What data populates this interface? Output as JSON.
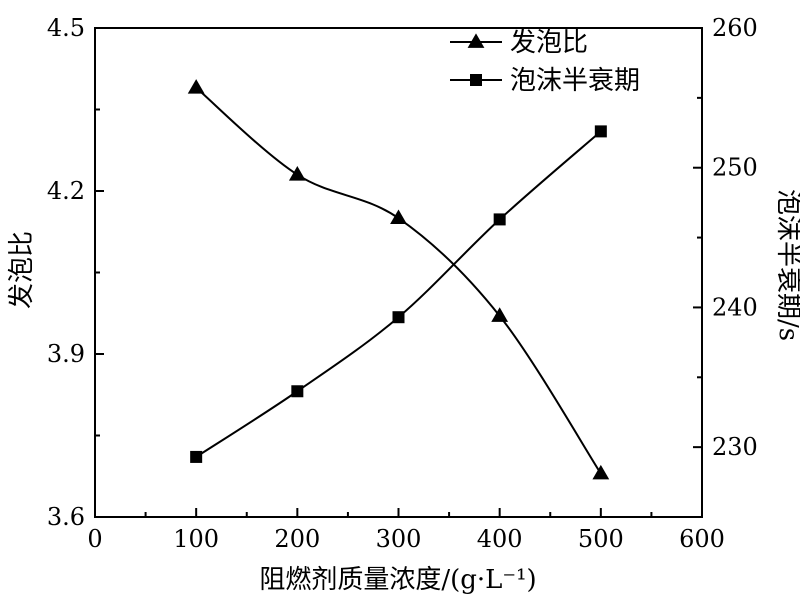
{
  "chart_data": {
    "type": "line",
    "title": "",
    "xlabel": "阻燃剂质量浓度/(g·L⁻¹)",
    "ylabel_left": "发泡比",
    "ylabel_right": "泡沫半衰期/s",
    "xlim": [
      0,
      600
    ],
    "ylim_left": [
      3.6,
      4.5
    ],
    "ylim_right": [
      225,
      260
    ],
    "x_ticks": [
      "0",
      "100",
      "200",
      "300",
      "400",
      "500",
      "600"
    ],
    "y_left_ticks": [
      "3.6",
      "3.9",
      "4.2",
      "4.5"
    ],
    "y_right_ticks": [
      "230",
      "240",
      "250",
      "260"
    ],
    "grid": false,
    "legend_position": "top-right",
    "x": [
      100,
      200,
      300,
      400,
      500
    ],
    "series": [
      {
        "name": "发泡比",
        "axis": "left",
        "marker": "triangle",
        "values": [
          4.39,
          4.23,
          4.15,
          3.97,
          3.68
        ]
      },
      {
        "name": "泡沫半衰期",
        "axis": "right",
        "marker": "square",
        "values": [
          229.3,
          234.0,
          239.3,
          246.3,
          252.6
        ]
      }
    ]
  }
}
